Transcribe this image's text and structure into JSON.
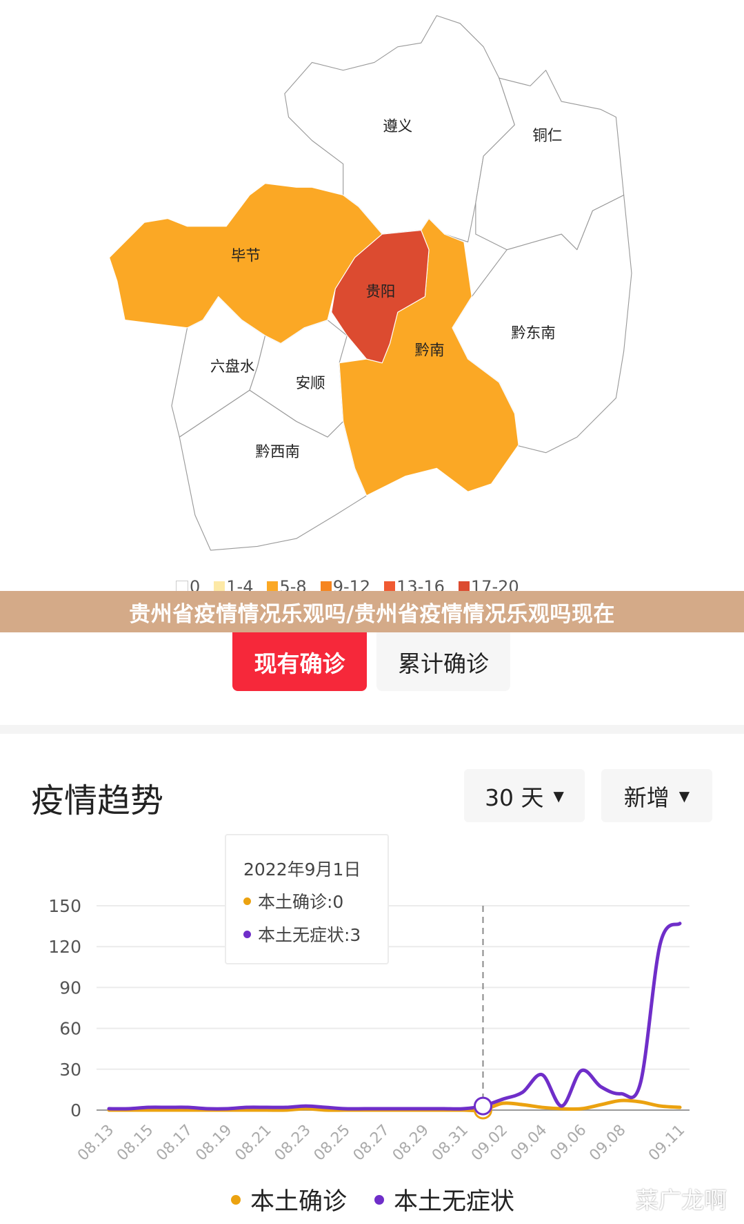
{
  "map": {
    "regions": [
      {
        "name": "遵义",
        "level": "0"
      },
      {
        "name": "铜仁",
        "level": "0"
      },
      {
        "name": "毕节",
        "level": "5-8"
      },
      {
        "name": "贵阳",
        "level": "17-20"
      },
      {
        "name": "黔南",
        "level": "5-8"
      },
      {
        "name": "黔东南",
        "level": "0"
      },
      {
        "name": "六盘水",
        "level": "0"
      },
      {
        "name": "安顺",
        "level": "0"
      },
      {
        "name": "黔西南",
        "level": "0"
      }
    ],
    "legend": [
      {
        "label": "0",
        "color": "#ffffff"
      },
      {
        "label": "1-4",
        "color": "#fde9a6"
      },
      {
        "label": "5-8",
        "color": "#fba825"
      },
      {
        "label": "9-12",
        "color": "#f6851f"
      },
      {
        "label": "13-16",
        "color": "#f05a32"
      },
      {
        "label": "17-20",
        "color": "#dc4b30"
      }
    ]
  },
  "banner": "贵州省疫情情况乐观吗/贵州省疫情情况乐观吗现在",
  "tabs": {
    "current": "现有确诊",
    "total": "累计确诊"
  },
  "colors": {
    "accent": "#f6283a",
    "local_confirmed": "#eba210",
    "local_asymptomatic": "#6f2ec9"
  },
  "trend": {
    "title": "疫情趋势",
    "range_dropdown": "30 天",
    "type_dropdown": "新增",
    "tooltip": {
      "date": "2022年9月1日",
      "confirmed": "本土确诊:0",
      "asymptomatic": "本土无症状:3"
    },
    "legend": [
      "本土确诊",
      "本土无症状"
    ]
  },
  "watermark": "菜广龙啊",
  "chart_data": {
    "type": "line",
    "x": [
      "08.13",
      "08.14",
      "08.15",
      "08.16",
      "08.17",
      "08.18",
      "08.19",
      "08.20",
      "08.21",
      "08.22",
      "08.23",
      "08.24",
      "08.25",
      "08.26",
      "08.27",
      "08.28",
      "08.29",
      "08.30",
      "08.31",
      "09.01",
      "09.02",
      "09.03",
      "09.04",
      "09.05",
      "09.06",
      "09.07",
      "09.08",
      "09.09",
      "09.10",
      "09.11"
    ],
    "xticks": [
      "08.13",
      "08.15",
      "08.17",
      "08.19",
      "08.21",
      "08.23",
      "08.25",
      "08.27",
      "08.29",
      "08.31",
      "09.02",
      "09.04",
      "09.06",
      "09.08",
      "09.11"
    ],
    "yticks": [
      0,
      30,
      60,
      90,
      120,
      150
    ],
    "ylim": [
      0,
      150
    ],
    "grid": true,
    "legend_position": "bottom",
    "highlight": "09.01",
    "series": [
      {
        "name": "本土确诊",
        "values": [
          0,
          0,
          0,
          0,
          0,
          0,
          0,
          0,
          0,
          0,
          1,
          0,
          0,
          0,
          0,
          0,
          0,
          0,
          0,
          0,
          5,
          4,
          2,
          1,
          1,
          4,
          7,
          6,
          3,
          2
        ]
      },
      {
        "name": "本土无症状",
        "values": [
          1,
          1,
          2,
          2,
          2,
          1,
          1,
          2,
          2,
          2,
          3,
          2,
          1,
          1,
          1,
          1,
          1,
          1,
          1,
          3,
          8,
          13,
          26,
          3,
          29,
          17,
          12,
          20,
          122,
          137
        ]
      }
    ]
  }
}
